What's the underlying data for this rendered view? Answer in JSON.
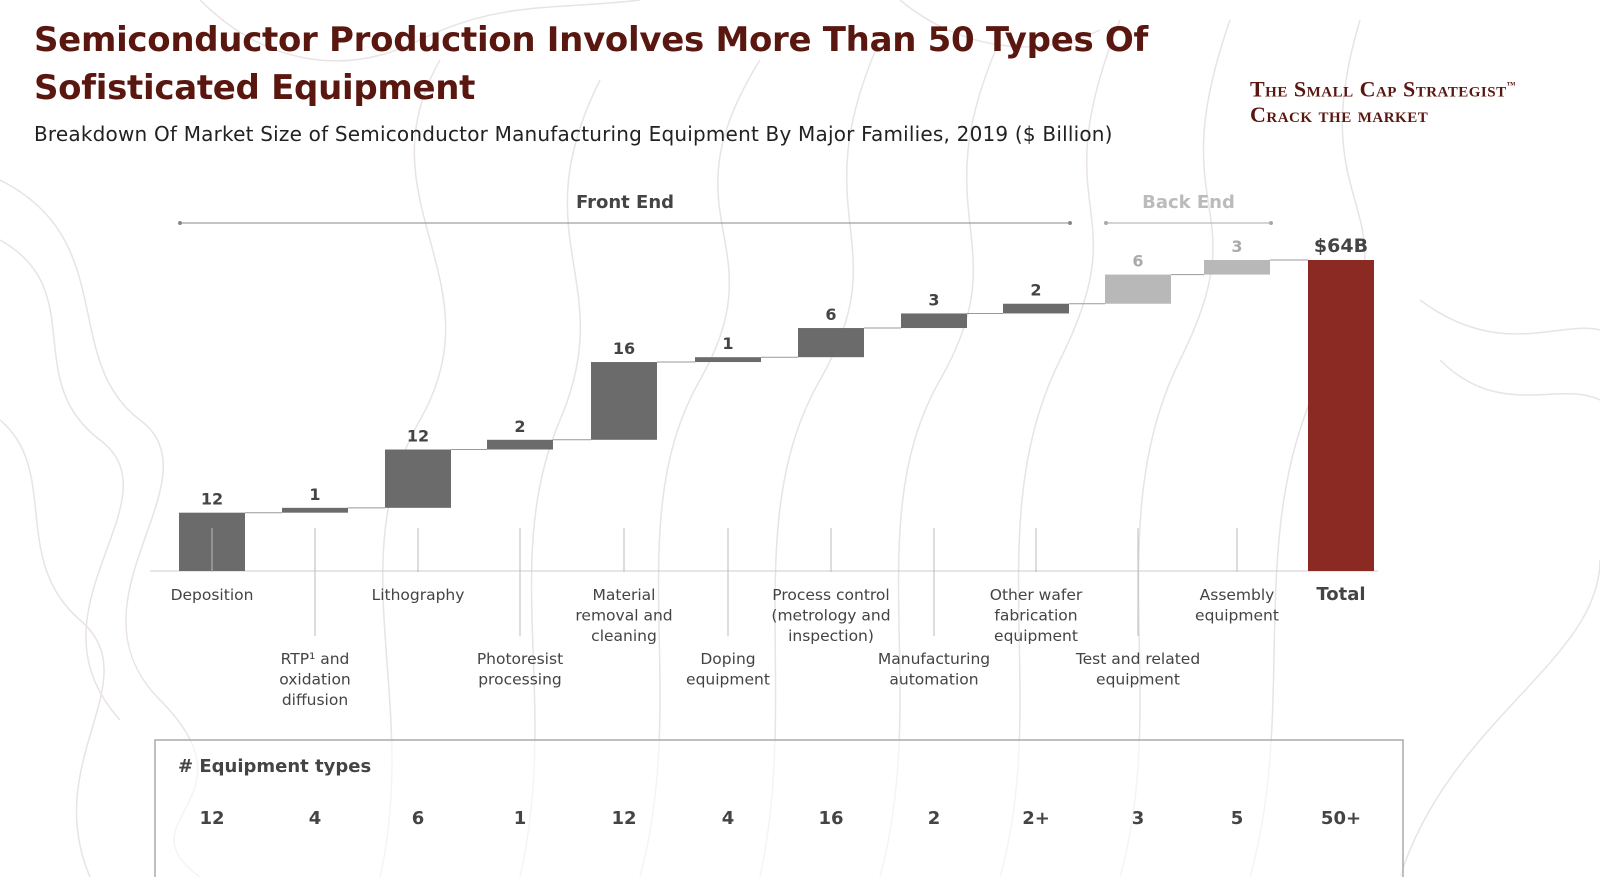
{
  "header": {
    "title": "Semiconductor Production Involves More Than 50 Types Of Sofisticated Equipment",
    "subtitle": "Breakdown Of Market Size of Semiconductor Manufacturing Equipment By Major Families, 2019 ($ Billion)"
  },
  "brand": {
    "line1": "The Small Cap Strategist",
    "tm": "™",
    "line2": "Crack the market"
  },
  "colors": {
    "front_end": "#6b6b6b",
    "back_end": "#b8b8b8",
    "total": "#8b2a22",
    "title": "#5a1710"
  },
  "chart_data": {
    "type": "bar",
    "subtype": "waterfall",
    "title": "Breakdown Of Market Size of Semiconductor Manufacturing Equipment By Major Families, 2019 ($ Billion)",
    "segments": [
      {
        "label": "Front End",
        "from": 0,
        "to": 8
      },
      {
        "label": "Back End",
        "from": 9,
        "to": 10
      }
    ],
    "categories": [
      "Deposition",
      "RTP¹ and oxidation diffusion",
      "Lithography",
      "Photoresist processing",
      "Material removal and cleaning",
      "Doping equipment",
      "Process control (metrology and inspection)",
      "Manufacturing automation",
      "Other wafer fabrication equipment",
      "Test and related equipment",
      "Assembly equipment",
      "Total"
    ],
    "category_lines": [
      [
        "Deposition"
      ],
      [
        "RTP¹ and",
        "oxidation",
        "diffusion"
      ],
      [
        "Lithography"
      ],
      [
        "Photoresist",
        "processing"
      ],
      [
        "Material",
        "removal and",
        "cleaning"
      ],
      [
        "Doping",
        "equipment"
      ],
      [
        "Process control",
        "(metrology and",
        "inspection)"
      ],
      [
        "Manufacturing",
        "automation"
      ],
      [
        "Other wafer",
        "fabrication",
        "equipment"
      ],
      [
        "Test and related",
        "equipment"
      ],
      [
        "Assembly",
        "equipment"
      ],
      [
        "Total"
      ]
    ],
    "values": [
      12,
      1,
      12,
      2,
      16,
      1,
      6,
      3,
      2,
      6,
      3,
      64
    ],
    "value_labels": [
      "12",
      "1",
      "12",
      "2",
      "16",
      "1",
      "6",
      "3",
      "2",
      "6",
      "3",
      "$64B"
    ],
    "group": [
      "front",
      "front",
      "front",
      "front",
      "front",
      "front",
      "front",
      "front",
      "front",
      "back",
      "back",
      "total"
    ],
    "ylim": [
      0,
      64
    ],
    "equipment_types_label": "# Equipment types",
    "equipment_types": [
      "12",
      "4",
      "6",
      "1",
      "12",
      "4",
      "16",
      "2",
      "2+",
      "3",
      "5",
      "50+"
    ]
  }
}
